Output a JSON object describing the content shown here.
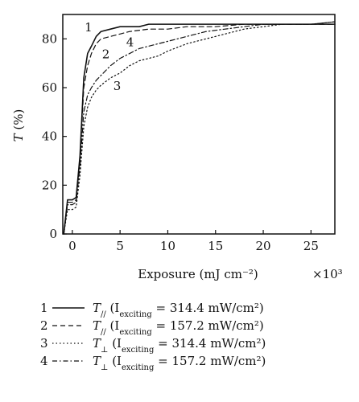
{
  "chart_data": {
    "type": "line",
    "xlabel": "Exposure (mJ cm⁻²)",
    "xscale_label": "×10³",
    "ylabel": "T (%)",
    "xlim": [
      -1,
      27.5
    ],
    "ylim": [
      0,
      90
    ],
    "x_ticks": [
      0,
      5,
      10,
      15,
      20,
      25
    ],
    "y_ticks": [
      0,
      20,
      40,
      60,
      80
    ],
    "grid": false,
    "legend_position": "bottom",
    "series": [
      {
        "name": "1",
        "legend_label": "T// (Iexciting = 314.4 mW/cm²)",
        "line_style": "solid",
        "color": "#111111",
        "x": [
          -0.9,
          -0.5,
          0.0,
          0.4,
          0.8,
          1.2,
          1.6,
          2.0,
          2.5,
          3.0,
          4.0,
          5.0,
          6.0,
          7.0,
          8.0,
          10.0,
          12.0,
          15.0,
          18.0,
          20.0,
          22.0,
          25.0,
          27.5
        ],
        "y": [
          0,
          14,
          14,
          15,
          32,
          64,
          74,
          77,
          81,
          83,
          84,
          85,
          85,
          85,
          86,
          86,
          86,
          86,
          86,
          86,
          86,
          86,
          86
        ]
      },
      {
        "name": "2",
        "legend_label": "T// (Iexciting = 157.2 mW/cm²)",
        "line_style": "dashed",
        "color": "#111111",
        "x": [
          -0.9,
          -0.5,
          0.0,
          0.4,
          0.8,
          1.2,
          1.6,
          2.0,
          2.5,
          3.0,
          4.0,
          5.0,
          6.0,
          8.0,
          10.0,
          12.0,
          15.0,
          18.0,
          20.0,
          22.0,
          25.0,
          27.5
        ],
        "y": [
          0,
          13,
          13,
          14,
          30,
          60,
          69,
          74,
          78,
          80,
          81,
          82,
          83,
          84,
          84,
          85,
          85,
          86,
          86,
          86,
          86,
          86
        ]
      },
      {
        "name": "3",
        "legend_label": "T⊥ (Iexciting = 314.4 mW/cm²)",
        "line_style": "dotted",
        "color": "#111111",
        "x": [
          -0.9,
          -0.5,
          0.0,
          0.4,
          0.8,
          1.2,
          1.6,
          2.0,
          2.5,
          3.0,
          4.0,
          5.0,
          6.0,
          7.0,
          8.0,
          9.0,
          10.0,
          12.0,
          14.0,
          16.0,
          18.0,
          20.0,
          22.0,
          25.0,
          27.5
        ],
        "y": [
          0,
          10,
          10,
          11,
          24,
          44,
          52,
          56,
          59,
          61,
          64,
          66,
          69,
          71,
          72,
          73,
          75,
          78,
          80,
          82,
          84,
          85,
          86,
          86,
          87
        ]
      },
      {
        "name": "4",
        "legend_label": "T⊥ (Iexciting = 157.2 mW/cm²)",
        "line_style": "dashdot",
        "color": "#111111",
        "x": [
          -0.9,
          -0.5,
          0.0,
          0.4,
          0.8,
          1.2,
          1.6,
          2.0,
          2.5,
          3.0,
          4.0,
          5.0,
          6.0,
          7.0,
          8.0,
          9.0,
          10.0,
          12.0,
          14.0,
          16.0,
          18.0,
          20.0,
          22.0,
          25.0,
          27.5
        ],
        "y": [
          0,
          12,
          12,
          13,
          28,
          50,
          57,
          60,
          63,
          65,
          69,
          72,
          74,
          76,
          77,
          78,
          79,
          81,
          83,
          84,
          85,
          86,
          86,
          86,
          87
        ]
      }
    ],
    "curve_labels": [
      "1",
      "2",
      "3",
      "4"
    ],
    "legend_entries": [
      {
        "number": "1",
        "symbol": "T",
        "subscript": "//",
        "text_prefix": "(I",
        "text_subscript": "exciting",
        "text_suffix": " = 314.4 mW/cm²)"
      },
      {
        "number": "2",
        "symbol": "T",
        "subscript": "//",
        "text_prefix": "(I",
        "text_subscript": "exciting",
        "text_suffix": " = 157.2 mW/cm²)"
      },
      {
        "number": "3",
        "symbol": "T",
        "subscript": "⊥",
        "text_prefix": "(I",
        "text_subscript": "exciting",
        "text_suffix": " = 314.4 mW/cm²)"
      },
      {
        "number": "4",
        "symbol": "T",
        "subscript": "⊥",
        "text_prefix": "(I",
        "text_subscript": "exciting",
        "text_suffix": " = 157.2 mW/cm²)"
      }
    ]
  }
}
